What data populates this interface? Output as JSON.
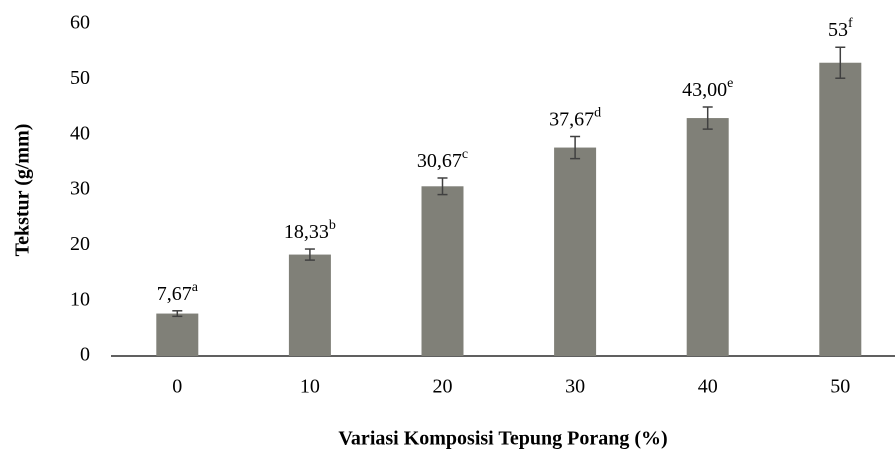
{
  "chart_data": {
    "type": "bar",
    "categories": [
      "0",
      "10",
      "20",
      "30",
      "40",
      "50"
    ],
    "values": [
      7.67,
      18.33,
      30.67,
      37.67,
      43.0,
      53
    ],
    "value_labels": [
      "7,67",
      "18,33",
      "30,67",
      "37,67",
      "43,00",
      "53"
    ],
    "value_superscripts": [
      "a",
      "b",
      "c",
      "d",
      "e",
      "f"
    ],
    "errors": [
      0.5,
      1.0,
      1.5,
      2.0,
      2.0,
      2.8
    ],
    "color": "#808078",
    "ylim": [
      0,
      60
    ],
    "yticks": [
      0,
      10,
      20,
      30,
      40,
      50,
      60
    ],
    "y_label": "Tekstur (g/mm)",
    "x_label": "Variasi Komposisi Tepung Porang (%)"
  }
}
